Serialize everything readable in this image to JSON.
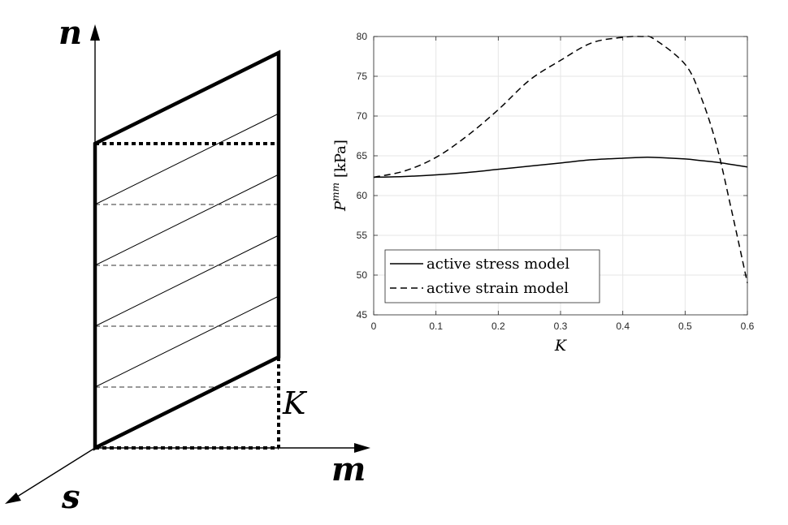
{
  "diagram": {
    "axis_n": "n",
    "axis_m": "m",
    "axis_s": "s",
    "shear_label": "K"
  },
  "chart_data": {
    "type": "line",
    "title": "",
    "xlabel": "K",
    "ylabel_main": "P",
    "ylabel_sup": "mm",
    "ylabel_unit": "[kPa]",
    "xlim": [
      0,
      0.6
    ],
    "ylim": [
      45,
      80
    ],
    "xticks": [
      0,
      0.1,
      0.2,
      0.3,
      0.4,
      0.5,
      0.6
    ],
    "xtick_labels": [
      "0",
      "0.1",
      "0.2",
      "0.3",
      "0.4",
      "0.5",
      "0.6"
    ],
    "yticks": [
      45,
      50,
      55,
      60,
      65,
      70,
      75,
      80
    ],
    "ytick_labels": [
      "45",
      "50",
      "55",
      "60",
      "65",
      "70",
      "75",
      "80"
    ],
    "grid": true,
    "legend_position": "bottom-left",
    "x": [
      0,
      0.05,
      0.1,
      0.15,
      0.2,
      0.25,
      0.3,
      0.35,
      0.4,
      0.43,
      0.45,
      0.5,
      0.525,
      0.55,
      0.575,
      0.6
    ],
    "series": [
      {
        "name": "active stress model",
        "style": "solid",
        "color": "#000000",
        "values": [
          62.3,
          62.4,
          62.6,
          62.9,
          63.3,
          63.7,
          64.1,
          64.5,
          64.7,
          64.8,
          64.8,
          64.6,
          64.4,
          64.2,
          63.9,
          63.6
        ]
      },
      {
        "name": "active strain model",
        "style": "dashed",
        "color": "#000000",
        "values": [
          62.3,
          63.1,
          64.8,
          67.5,
          70.8,
          74.5,
          77.0,
          79.2,
          79.9,
          80.0,
          79.7,
          76.5,
          72.5,
          66.5,
          58.0,
          49.0
        ]
      }
    ]
  }
}
